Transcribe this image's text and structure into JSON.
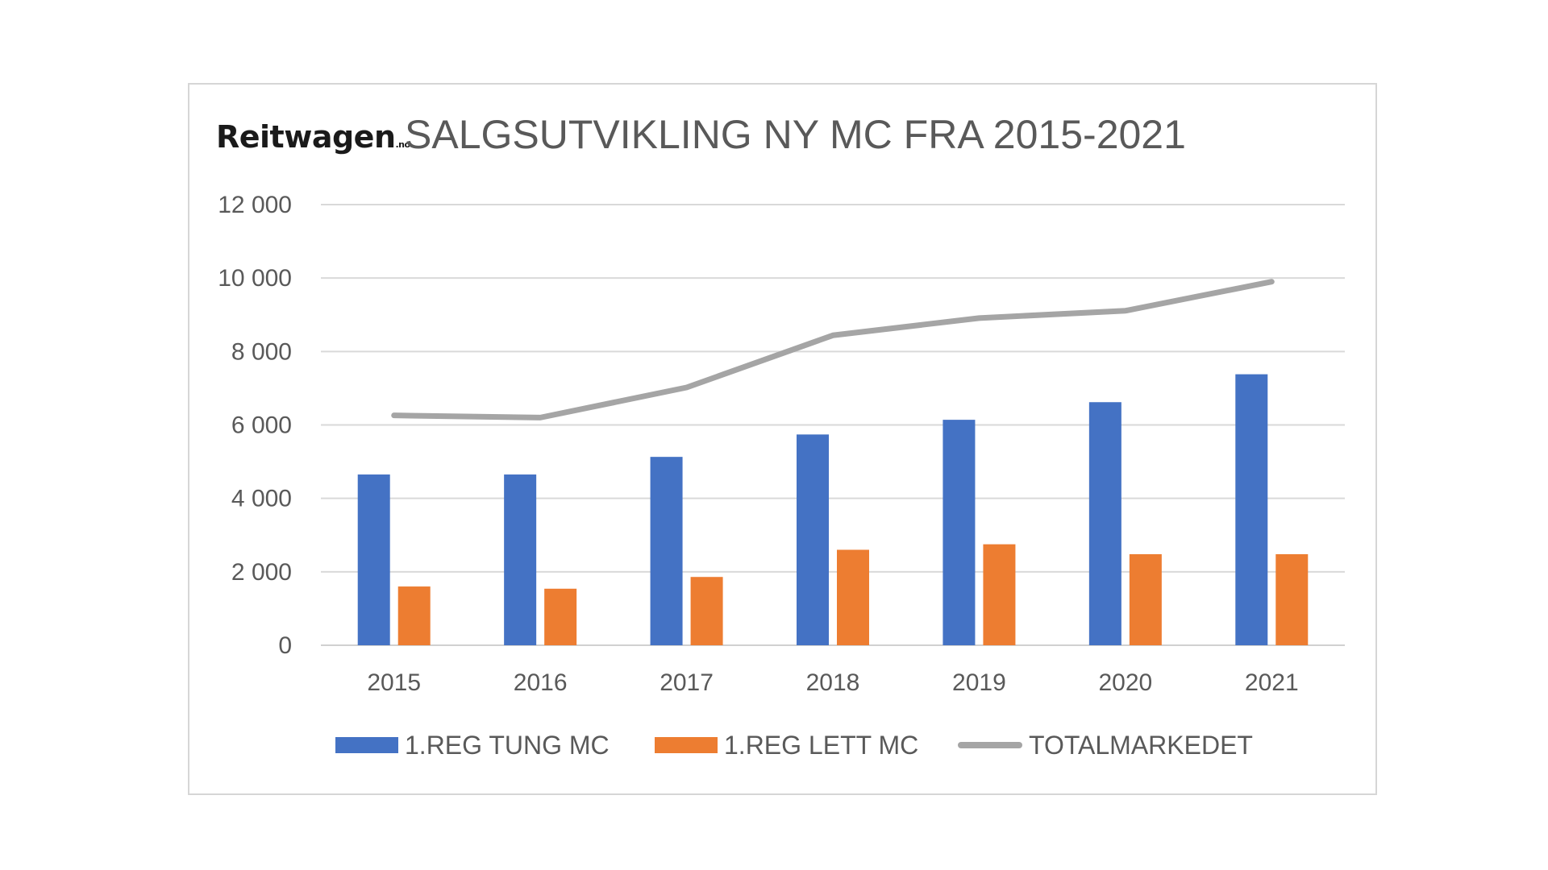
{
  "brand": {
    "name": "Reitwagen",
    "tld": ".no"
  },
  "chart_data": {
    "type": "bar",
    "title": "SALGSUTVIKLING NY MC FRA 2015-2021",
    "categories": [
      "2015",
      "2016",
      "2017",
      "2018",
      "2019",
      "2020",
      "2021"
    ],
    "ylim": [
      0,
      12000
    ],
    "yticks": [
      0,
      2000,
      4000,
      6000,
      8000,
      10000,
      12000
    ],
    "ytick_labels": [
      "0",
      "2 000",
      "4 000",
      "6 000",
      "8 000",
      "10 000",
      "12 000"
    ],
    "grid": true,
    "legend": "bottom",
    "series": [
      {
        "name": "1.REG TUNG MC",
        "kind": "bar",
        "color": "#4472C4",
        "values": [
          4650,
          4650,
          5130,
          5740,
          6140,
          6620,
          7380
        ]
      },
      {
        "name": "1.REG LETT MC",
        "kind": "bar",
        "color": "#ED7D31",
        "values": [
          1600,
          1540,
          1860,
          2600,
          2750,
          2480,
          2480
        ]
      },
      {
        "name": "TOTALMARKEDET",
        "kind": "line",
        "color": "#A5A5A5",
        "values": [
          6260,
          6200,
          7020,
          8440,
          8910,
          9110,
          9900
        ]
      }
    ]
  }
}
